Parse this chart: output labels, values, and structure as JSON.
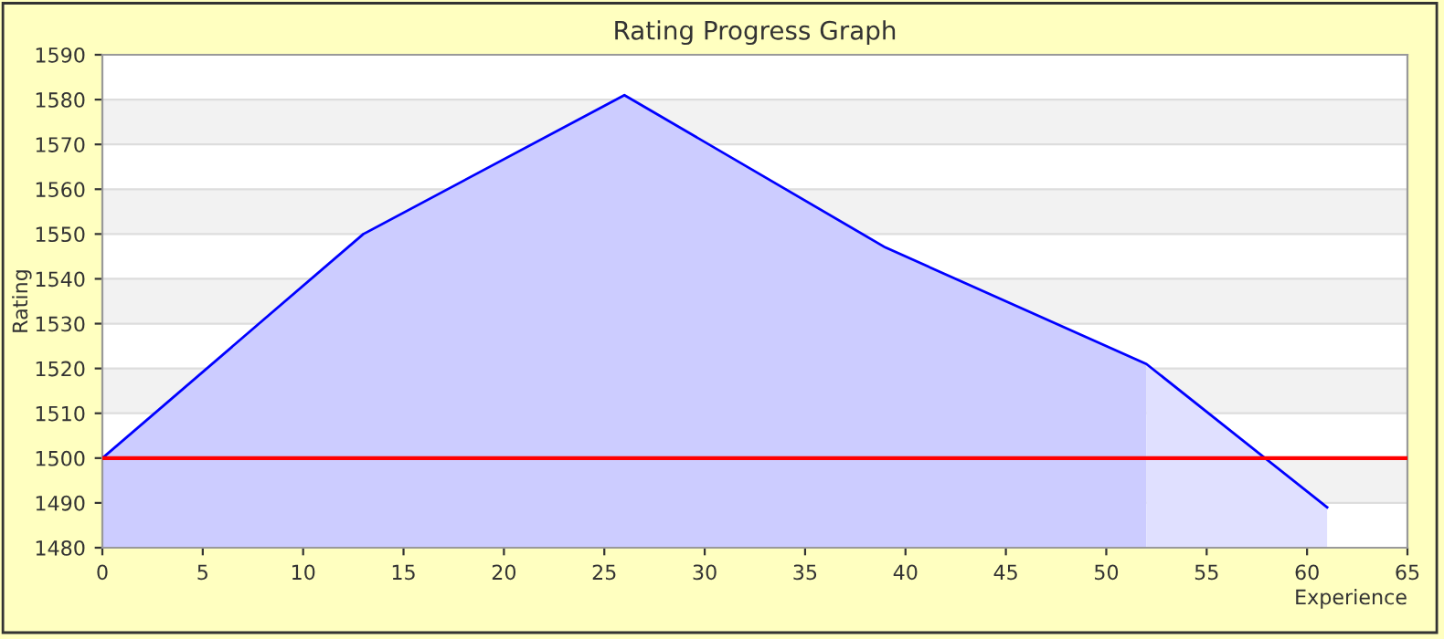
{
  "chart_data": {
    "type": "area",
    "title": "Rating Progress Graph",
    "xlabel": "Experience",
    "ylabel": "Rating",
    "series": [
      {
        "color": "#ccccff",
        "x": [
          0,
          13,
          26,
          39,
          52
        ],
        "values": [
          1500,
          1550,
          1581,
          1547,
          1521
        ]
      },
      {
        "color": "#e0e0ff",
        "x": [
          52,
          61
        ],
        "values": [
          1521,
          1489
        ]
      },
      {
        "type": "line",
        "color": "#0000ff",
        "x": [
          0,
          13,
          26,
          39,
          52,
          61
        ],
        "values": [
          1500,
          1550,
          1581,
          1547,
          1521,
          1489
        ]
      }
    ],
    "ref_lines": [
      {
        "axis": "y",
        "value": 1500,
        "color": "#ff0000"
      }
    ],
    "xlim": [
      0,
      65
    ],
    "xticks": [
      0,
      5,
      10,
      15,
      20,
      25,
      30,
      35,
      40,
      45,
      50,
      55,
      60,
      65
    ],
    "ylim": [
      1480,
      1590
    ],
    "yticks": [
      1480,
      1490,
      1500,
      1510,
      1520,
      1530,
      1540,
      1550,
      1560,
      1570,
      1580,
      1590
    ],
    "grid": "y"
  }
}
